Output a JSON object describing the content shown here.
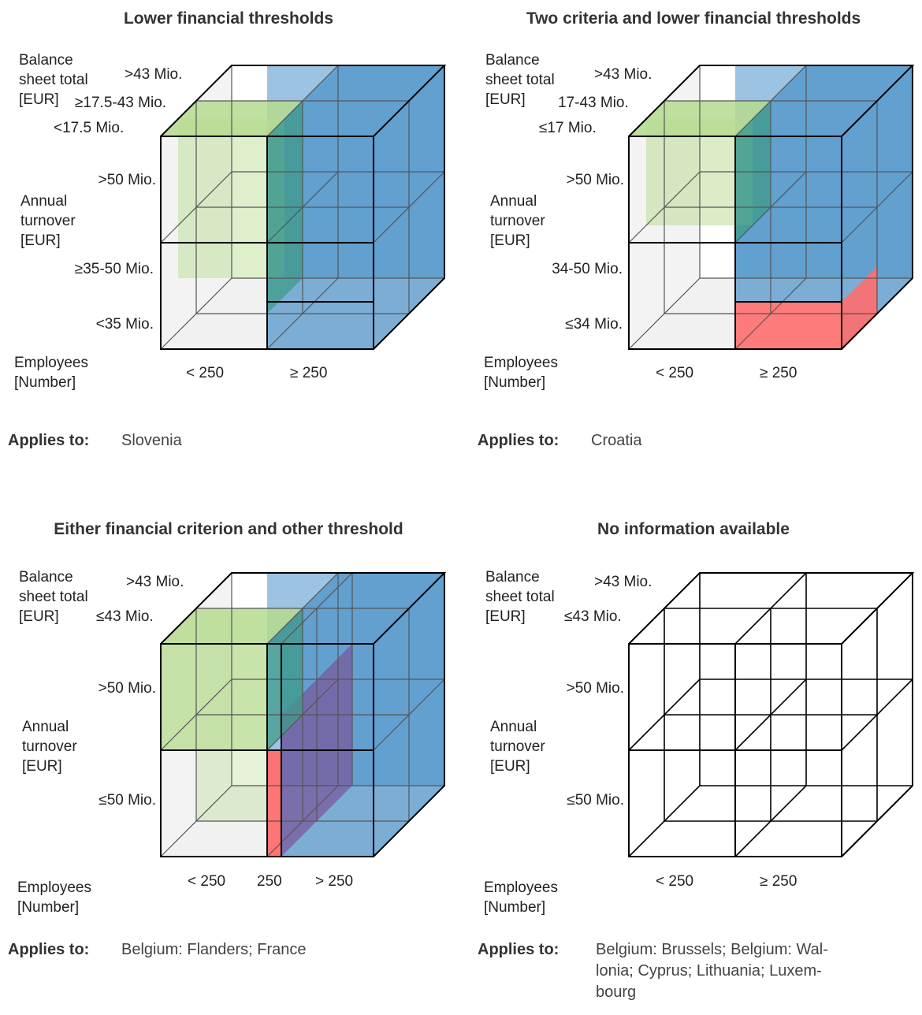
{
  "colors": {
    "green": "#b5db8f",
    "blue": "#4a92c9",
    "red": "#ff6e6e",
    "purple": "#7a5a9e",
    "grey": "#ededed",
    "edge": "#000000"
  },
  "applies_label": "Applies to:",
  "panels": [
    {
      "title": "Lower financial thresholds",
      "balance_axis": {
        "title": "Balance\nsheet total\n[EUR]",
        "ticks": [
          ">43 Mio.",
          "≥17.5-43 Mio.",
          "<17.5 Mio."
        ]
      },
      "turnover_axis": {
        "title": "Annual\nturnover\n[EUR]",
        "ticks": [
          ">50 Mio.",
          "≥35-50 Mio.",
          "<35 Mio."
        ]
      },
      "employees_axis": {
        "title": "Employees\n[Number]",
        "ticks": [
          "< 250",
          "≥ 250"
        ]
      },
      "applies_to": "Slovenia"
    },
    {
      "title": "Two criteria and lower financial thresholds",
      "balance_axis": {
        "title": "Balance\nsheet total\n[EUR]",
        "ticks": [
          ">43 Mio.",
          "17-43 Mio.",
          "≤17 Mio."
        ]
      },
      "turnover_axis": {
        "title": "Annual\nturnover\n[EUR]",
        "ticks": [
          ">50 Mio.",
          "34-50 Mio.",
          "≤34 Mio."
        ]
      },
      "employees_axis": {
        "title": "Employees\n[Number]",
        "ticks": [
          "< 250",
          "≥ 250"
        ]
      },
      "applies_to": "Croatia"
    },
    {
      "title": "Either financial criterion and other threshold",
      "balance_axis": {
        "title": "Balance\nsheet total\n[EUR]",
        "ticks": [
          ">43 Mio.",
          "≤43 Mio."
        ]
      },
      "turnover_axis": {
        "title": "Annual\nturnover\n[EUR]",
        "ticks": [
          ">50 Mio.",
          "≤50 Mio."
        ]
      },
      "employees_axis": {
        "title": "Employees\n[Number]",
        "ticks": [
          "< 250",
          "250",
          "> 250"
        ]
      },
      "applies_to": "Belgium: Flanders; France"
    },
    {
      "title": "No information available",
      "balance_axis": {
        "title": "Balance\nsheet total\n[EUR]",
        "ticks": [
          ">43 Mio.",
          "≤43 Mio."
        ]
      },
      "turnover_axis": {
        "title": "Annual\nturnover\n[EUR]",
        "ticks": [
          ">50 Mio.",
          "≤50 Mio."
        ]
      },
      "employees_axis": {
        "title": "Employees\n[Number]",
        "ticks": [
          "< 250",
          "≥ 250"
        ]
      },
      "applies_to": "Belgium: Brussels; Belgium: Wal-\nlonia; Cyprus; Lithuania; Luxem-\nbourg"
    }
  ]
}
